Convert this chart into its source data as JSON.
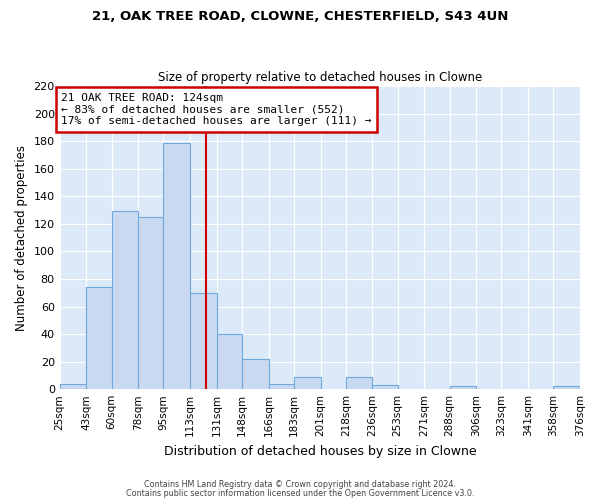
{
  "title1": "21, OAK TREE ROAD, CLOWNE, CHESTERFIELD, S43 4UN",
  "title2": "Size of property relative to detached houses in Clowne",
  "xlabel": "Distribution of detached houses by size in Clowne",
  "ylabel": "Number of detached properties",
  "bin_edges": [
    25,
    43,
    60,
    78,
    95,
    113,
    131,
    148,
    166,
    183,
    201,
    218,
    236,
    253,
    271,
    288,
    306,
    323,
    341,
    358,
    376
  ],
  "bin_labels": [
    "25sqm",
    "43sqm",
    "60sqm",
    "78sqm",
    "95sqm",
    "113sqm",
    "131sqm",
    "148sqm",
    "166sqm",
    "183sqm",
    "201sqm",
    "218sqm",
    "236sqm",
    "253sqm",
    "271sqm",
    "288sqm",
    "306sqm",
    "323sqm",
    "341sqm",
    "358sqm",
    "376sqm"
  ],
  "counts": [
    4,
    74,
    129,
    125,
    179,
    70,
    40,
    22,
    4,
    9,
    0,
    9,
    3,
    0,
    0,
    2,
    0,
    0,
    0,
    2
  ],
  "bar_color": "#c9daf0",
  "bar_edge_color": "#6fa8dc",
  "vline_x": 124,
  "vline_color": "#cc0000",
  "ylim": [
    0,
    220
  ],
  "yticks": [
    0,
    20,
    40,
    60,
    80,
    100,
    120,
    140,
    160,
    180,
    200,
    220
  ],
  "annotation_title": "21 OAK TREE ROAD: 124sqm",
  "annotation_line1": "← 83% of detached houses are smaller (552)",
  "annotation_line2": "17% of semi-detached houses are larger (111) →",
  "annotation_box_color": "#ffffff",
  "annotation_box_edge_color": "#cc0000",
  "footer1": "Contains HM Land Registry data © Crown copyright and database right 2024.",
  "footer2": "Contains public sector information licensed under the Open Government Licence v3.0.",
  "fig_background_color": "#ffffff",
  "plot_background": "#dce9f8",
  "grid_color": "#ffffff"
}
